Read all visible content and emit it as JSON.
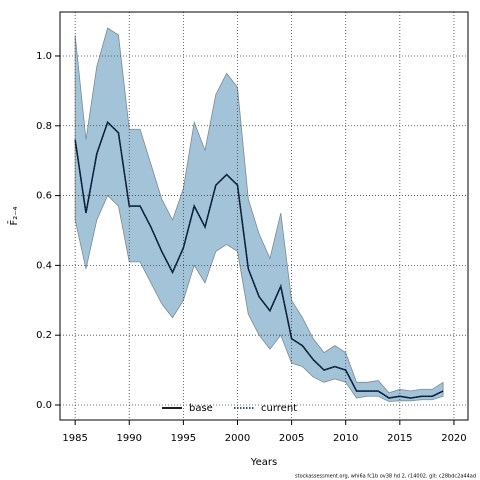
{
  "chart_data": {
    "type": "line",
    "xlabel": "Years",
    "ylabel": "F̄₂₋₄",
    "footnote": "stockassessment.org, whi6a fc1b ov38 hd 2, r14002, git: c28bdc2a44ad",
    "x": [
      1985,
      1986,
      1987,
      1988,
      1989,
      1990,
      1991,
      1992,
      1993,
      1994,
      1995,
      1996,
      1997,
      1998,
      1999,
      2000,
      2001,
      2002,
      2003,
      2004,
      2005,
      2006,
      2007,
      2008,
      2009,
      2010,
      2011,
      2012,
      2013,
      2014,
      2015,
      2016,
      2017,
      2018,
      2019
    ],
    "series": [
      {
        "name": "base",
        "color": "#000000",
        "style": "solid",
        "values": [
          0.76,
          0.55,
          0.72,
          0.81,
          0.78,
          0.57,
          0.57,
          0.51,
          0.44,
          0.38,
          0.45,
          0.57,
          0.51,
          0.63,
          0.66,
          0.63,
          0.39,
          0.31,
          0.27,
          0.34,
          0.19,
          0.17,
          0.13,
          0.1,
          0.11,
          0.1,
          0.04,
          0.04,
          0.04,
          0.02,
          0.025,
          0.02,
          0.025,
          0.025,
          0.04
        ]
      },
      {
        "name": "current",
        "color": "#0b3d6e",
        "style": "dotted",
        "values": [
          0.76,
          0.55,
          0.72,
          0.81,
          0.78,
          0.57,
          0.57,
          0.51,
          0.44,
          0.38,
          0.45,
          0.57,
          0.51,
          0.63,
          0.66,
          0.63,
          0.39,
          0.31,
          0.27,
          0.34,
          0.19,
          0.17,
          0.13,
          0.1,
          0.11,
          0.1,
          0.04,
          0.04,
          0.04,
          0.02,
          0.025,
          0.02,
          0.025,
          0.025,
          0.04
        ]
      }
    ],
    "band": {
      "color": "#a3c4d8",
      "upper": [
        1.06,
        0.76,
        0.97,
        1.08,
        1.06,
        0.79,
        0.79,
        0.69,
        0.59,
        0.53,
        0.62,
        0.81,
        0.73,
        0.89,
        0.95,
        0.91,
        0.59,
        0.49,
        0.42,
        0.55,
        0.3,
        0.25,
        0.19,
        0.15,
        0.17,
        0.15,
        0.065,
        0.065,
        0.07,
        0.035,
        0.045,
        0.04,
        0.045,
        0.045,
        0.065
      ],
      "lower": [
        0.53,
        0.39,
        0.53,
        0.6,
        0.57,
        0.41,
        0.41,
        0.35,
        0.29,
        0.25,
        0.3,
        0.4,
        0.35,
        0.44,
        0.46,
        0.44,
        0.26,
        0.2,
        0.16,
        0.2,
        0.12,
        0.11,
        0.08,
        0.065,
        0.075,
        0.065,
        0.02,
        0.025,
        0.025,
        0.01,
        0.012,
        0.012,
        0.015,
        0.015,
        0.025
      ]
    },
    "xlim": [
      1983.6,
      2021.3
    ],
    "ylim": [
      -0.043,
      1.126
    ],
    "xticks": [
      1985,
      1990,
      1995,
      2000,
      2005,
      2010,
      2015,
      2020
    ],
    "yticks": [
      {
        "value": 0,
        "label": "0.0"
      },
      0.2,
      0.4,
      0.6,
      0.8,
      {
        "value": 1,
        "label": "1.0"
      }
    ],
    "grid": true,
    "legend": "bottom"
  }
}
